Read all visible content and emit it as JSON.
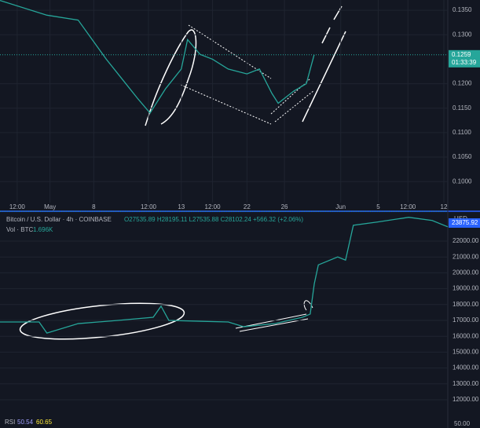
{
  "chart_data": [
    {
      "type": "line",
      "x": [
        0,
        15,
        25,
        34,
        39,
        44,
        48,
        53,
        58,
        60,
        64,
        68,
        73,
        79,
        83,
        87,
        89,
        94,
        98,
        100.5
      ],
      "series": [
        {
          "color": "#26a69a",
          "values": [
            0.137,
            0.134,
            0.133,
            0.125,
            0.121,
            0.117,
            0.114,
            0.119,
            0.123,
            0.129,
            0.126,
            0.125,
            0.123,
            0.122,
            0.123,
            0.118,
            0.116,
            0.1185,
            0.12,
            0.1259
          ]
        }
      ],
      "xlim": [
        0,
        142
      ],
      "xticks": [
        {
          "value": 5.5,
          "label": "12:00"
        },
        {
          "value": 16,
          "label": "May"
        },
        {
          "value": 30,
          "label": "8"
        },
        {
          "value": 47.5,
          "label": "12:00"
        },
        {
          "value": 58,
          "label": "13"
        },
        {
          "value": 68,
          "label": "12:00"
        },
        {
          "value": 79,
          "label": "22"
        },
        {
          "value": 91,
          "label": "26"
        },
        {
          "value": 109,
          "label": "Jun"
        },
        {
          "value": 121,
          "label": "5"
        },
        {
          "value": 130.5,
          "label": "12:00"
        },
        {
          "value": 142,
          "label": "12"
        }
      ],
      "ylim": [
        0.0957,
        0.1371
      ],
      "yticks": [
        {
          "value": 0.135,
          "label": "0.1350"
        },
        {
          "value": 0.13,
          "label": "0.1300"
        },
        {
          "value": 0.12,
          "label": "0.1200"
        },
        {
          "value": 0.115,
          "label": "0.1150"
        },
        {
          "value": 0.11,
          "label": "0.1100"
        },
        {
          "value": 0.105,
          "label": "0.1050"
        },
        {
          "value": 0.1,
          "label": "0.1000"
        }
      ],
      "last_price": 0.1259,
      "countdown": "01:33:39"
    },
    {
      "type": "line",
      "title": "Bitcoin / U.S. Dollar · 4h · COINBASE",
      "ohlc": "O27535.89 H28195.11 L27535.88 C28102.24 +566.32 (+2.06%)",
      "volume_label": "Vol · BTC",
      "volume_value": "1.696K",
      "currency": "USD",
      "x": [
        0,
        12.5,
        15,
        25,
        37.7,
        49,
        51.5,
        54,
        73,
        78,
        88,
        96.7,
        99.2,
        100.5,
        101.8,
        108,
        110.5,
        113,
        120.6,
        130.7,
        138.2,
        143.2
      ],
      "series": [
        {
          "color": "#26a69a",
          "values": [
            16900,
            16900,
            16200,
            16800,
            17000,
            17200,
            17900,
            17000,
            16900,
            16600,
            16800,
            17200,
            17400,
            19300,
            20500,
            21000,
            20800,
            23000,
            23200,
            23500,
            23300,
            22900
          ]
        }
      ],
      "xlim": [
        0,
        143.2
      ],
      "ylim": [
        11208,
        23832
      ],
      "yticks": [
        {
          "value": 22000,
          "label": "22000.00"
        },
        {
          "value": 21000,
          "label": "21000.00"
        },
        {
          "value": 20000,
          "label": "20000.00"
        },
        {
          "value": 19000,
          "label": "19000.00"
        },
        {
          "value": 18000,
          "label": "18000.00"
        },
        {
          "value": 17000,
          "label": "17000.00"
        },
        {
          "value": 16000,
          "label": "16000.00"
        },
        {
          "value": 15000,
          "label": "15000.00"
        },
        {
          "value": 14000,
          "label": "14000.00"
        },
        {
          "value": 13000,
          "label": "13000.00"
        },
        {
          "value": 12000,
          "label": "12000.00"
        }
      ],
      "last_price": 23875.92,
      "rsi": {
        "label": "RSI",
        "values": [
          "50.54",
          "60.65"
        ],
        "level": "50.00"
      }
    }
  ]
}
